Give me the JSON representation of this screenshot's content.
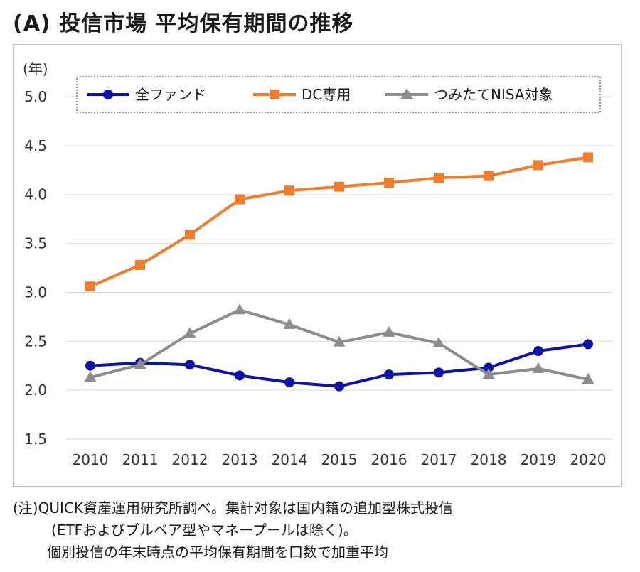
{
  "title": "(A) 投信市場 平均保有期間の推移",
  "chart_data": {
    "type": "line",
    "ylabel": "(年)",
    "xlabel": "",
    "ylim": [
      1.5,
      5.0
    ],
    "yticks": [
      "1.5",
      "2.0",
      "2.5",
      "3.0",
      "3.5",
      "4.0",
      "4.5",
      "5.0"
    ],
    "categories": [
      "2010",
      "2011",
      "2012",
      "2013",
      "2014",
      "2015",
      "2016",
      "2017",
      "2018",
      "2019",
      "2020"
    ],
    "grid": true,
    "legend_position": "top",
    "series": [
      {
        "name": "全ファンド",
        "color": "#0d12a8",
        "marker": "circle",
        "values": [
          2.25,
          2.28,
          2.26,
          2.15,
          2.08,
          2.04,
          2.16,
          2.18,
          2.23,
          2.4,
          2.47
        ]
      },
      {
        "name": "DC専用",
        "color": "#f07d2b",
        "marker": "square",
        "values": [
          3.06,
          3.28,
          3.59,
          3.95,
          4.04,
          4.08,
          4.12,
          4.17,
          4.19,
          4.3,
          4.38
        ]
      },
      {
        "name": "つみたてNISA対象",
        "color": "#8c8c8c",
        "marker": "triangle",
        "values": [
          2.13,
          2.26,
          2.58,
          2.82,
          2.67,
          2.49,
          2.59,
          2.48,
          2.16,
          2.22,
          2.11
        ]
      }
    ]
  },
  "notes": {
    "line1": "(注)QUICK資産運用研究所調べ。集計対象は国内籍の追加型株式投信",
    "line2": "(ETFおよびブルベア型やマネープールは除く)。",
    "line3": "個別投信の年末時点の平均保有期間を口数で加重平均"
  }
}
